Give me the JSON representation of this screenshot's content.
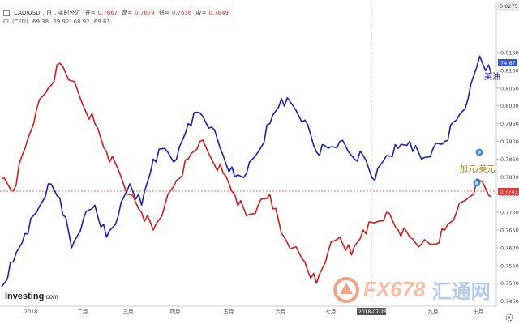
{
  "header": {
    "symbol": "CAD/USD",
    "period": "日",
    "source": "实时外汇",
    "open_label": "开=",
    "open": "0.7667",
    "high_label": "高=",
    "high": "0.7679",
    "low_label": "低=",
    "low": "0.7636",
    "close_label": "收=",
    "close": "0.7649",
    "overlay_symbol": "CL (CFD)",
    "overlay_values": [
      "69.38",
      "69.92",
      "68.92",
      "69.61"
    ]
  },
  "badges": {
    "cad_price": "0.7743",
    "oil_price": "74.67",
    "top_price": "0.8275"
  },
  "annotations": {
    "oil_label": "美油",
    "cad_label": "加元/美元",
    "marker_p": "P"
  },
  "crosshair_date": "2018-07-26",
  "branding": {
    "investing": "Investing",
    "investing_suffix": ".com",
    "fx678": "FX678",
    "huitong": "汇通网"
  },
  "colors": {
    "cad": "#cc1f1f",
    "oil": "#1f1fb0",
    "badge_red": "#e23a3a",
    "badge_blue": "#3a55c8",
    "marker": "#3b8ad6"
  },
  "chart_data": {
    "type": "line",
    "x_ticks": [
      "2018",
      "二月",
      "三月",
      "四月",
      "五月",
      "六月",
      "七月",
      "2018-07-26",
      "九月",
      "十月"
    ],
    "ylim": [
      0.744,
      0.828
    ],
    "y_ticks": [
      0.745,
      0.75,
      0.755,
      0.76,
      0.765,
      0.77,
      0.775,
      0.78,
      0.785,
      0.79,
      0.795,
      0.8,
      0.805,
      0.81,
      0.815
    ],
    "y_tick_labels": [
      "0.7450",
      "0.7500",
      "0.7550",
      "0.7600",
      "0.7650",
      "0.7700",
      "0.7750",
      "0.7800",
      "0.7850",
      "0.7900",
      "0.7950",
      "0.8000",
      "0.8050",
      "0.8100",
      "0.8150"
    ],
    "x_range": [
      0,
      42
    ],
    "series": [
      {
        "name": "CAD/USD",
        "x": [
          0,
          1,
          2,
          3,
          4,
          5,
          6,
          7,
          8,
          9,
          10,
          11,
          12,
          13,
          14,
          15,
          16,
          17,
          18,
          19,
          20,
          21,
          22,
          23,
          24,
          25,
          26,
          27,
          28,
          29,
          30,
          31,
          32,
          33,
          34,
          35,
          36,
          37,
          38,
          39,
          40,
          41,
          42
        ],
        "values": [
          0.7795,
          0.776,
          0.788,
          0.799,
          0.805,
          0.812,
          0.807,
          0.8,
          0.795,
          0.787,
          0.782,
          0.775,
          0.77,
          0.765,
          0.772,
          0.779,
          0.785,
          0.79,
          0.785,
          0.781,
          0.775,
          0.769,
          0.772,
          0.775,
          0.764,
          0.76,
          0.756,
          0.75,
          0.759,
          0.763,
          0.758,
          0.765,
          0.767,
          0.77,
          0.765,
          0.763,
          0.761,
          0.761,
          0.765,
          0.77,
          0.774,
          0.779,
          0.7743
        ]
      },
      {
        "name": "CL",
        "x": [
          0,
          1,
          2,
          3,
          4,
          5,
          6,
          7,
          8,
          9,
          10,
          11,
          12,
          13,
          14,
          15,
          16,
          17,
          18,
          19,
          20,
          21,
          22,
          23,
          24,
          25,
          26,
          27,
          28,
          29,
          30,
          31,
          32,
          33,
          34,
          35,
          36,
          37,
          38,
          39,
          40,
          41,
          42
        ],
        "values": [
          0.749,
          0.756,
          0.764,
          0.77,
          0.778,
          0.774,
          0.76,
          0.768,
          0.772,
          0.763,
          0.769,
          0.778,
          0.772,
          0.785,
          0.788,
          0.785,
          0.795,
          0.798,
          0.794,
          0.786,
          0.78,
          0.781,
          0.787,
          0.795,
          0.802,
          0.8,
          0.796,
          0.787,
          0.788,
          0.79,
          0.786,
          0.786,
          0.779,
          0.786,
          0.788,
          0.79,
          0.785,
          0.788,
          0.79,
          0.796,
          0.802,
          0.814,
          0.809
        ]
      }
    ]
  }
}
